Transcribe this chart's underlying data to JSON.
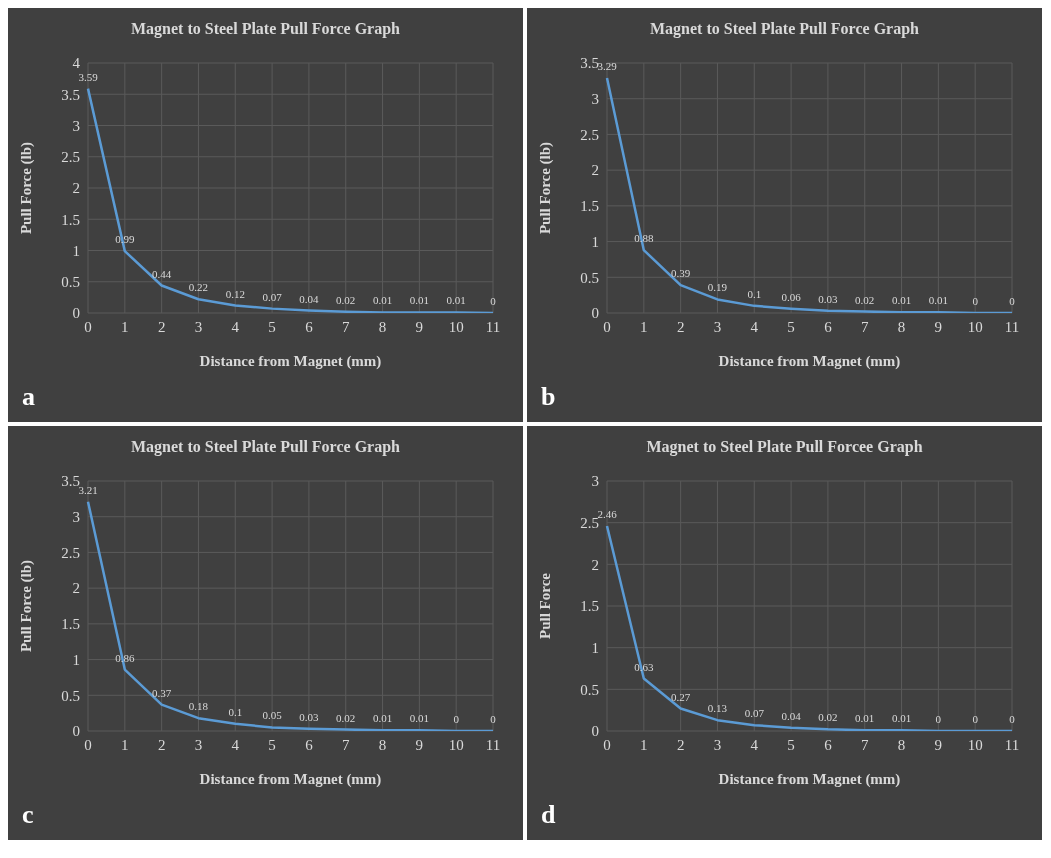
{
  "chart_data": [
    {
      "type": "line",
      "title": "Magnet to Steel Plate Pull Force Graph",
      "xlabel": "Distance from Magnet (mm)",
      "ylabel": "Pull Force (lb)",
      "categories": [
        "0",
        "1",
        "2",
        "3",
        "4",
        "5",
        "6",
        "7",
        "8",
        "9",
        "10",
        "11"
      ],
      "values": [
        3.59,
        0.99,
        0.44,
        0.22,
        0.12,
        0.07,
        0.04,
        0.02,
        0.01,
        0.01,
        0.01,
        0
      ],
      "color": "#5b9bd5",
      "ylim": [
        0,
        4
      ],
      "yticks": [
        0,
        0.5,
        1,
        1.5,
        2,
        2.5,
        3,
        3.5,
        4
      ],
      "grid": true,
      "data_labels": true,
      "annotations": [
        "a"
      ]
    },
    {
      "type": "line",
      "title": "Magnet to Steel Plate Pull Force Graph",
      "xlabel": "Distance from Magnet (mm)",
      "ylabel": "Pull Force (lb)",
      "categories": [
        "0",
        "1",
        "2",
        "3",
        "4",
        "5",
        "6",
        "7",
        "8",
        "9",
        "10",
        "11"
      ],
      "values": [
        3.29,
        0.88,
        0.39,
        0.19,
        0.1,
        0.06,
        0.03,
        0.02,
        0.01,
        0.01,
        0,
        0
      ],
      "color": "#5b9bd5",
      "ylim": [
        0,
        3.5
      ],
      "yticks": [
        0,
        0.5,
        1,
        1.5,
        2,
        2.5,
        3,
        3.5
      ],
      "grid": true,
      "data_labels": true,
      "annotations": [
        "b"
      ]
    },
    {
      "type": "line",
      "title": "Magnet to Steel Plate Pull Force Graph",
      "xlabel": "Distance from Magnet (mm)",
      "ylabel": "Pull Force (lb)",
      "categories": [
        "0",
        "1",
        "2",
        "3",
        "4",
        "5",
        "6",
        "7",
        "8",
        "9",
        "10",
        "11"
      ],
      "values": [
        3.21,
        0.86,
        0.37,
        0.18,
        0.1,
        0.05,
        0.03,
        0.02,
        0.01,
        0.01,
        0,
        0
      ],
      "color": "#5b9bd5",
      "ylim": [
        0,
        3.5
      ],
      "yticks": [
        0,
        0.5,
        1,
        1.5,
        2,
        2.5,
        3,
        3.5
      ],
      "grid": true,
      "data_labels": true,
      "annotations": [
        "c"
      ]
    },
    {
      "type": "line",
      "title": "Magnet to Steel Plate Pull Forcee Graph",
      "xlabel": "Distance from Magnet (mm)",
      "ylabel": "Pull Force",
      "categories": [
        "0",
        "1",
        "2",
        "3",
        "4",
        "5",
        "6",
        "7",
        "8",
        "9",
        "10",
        "11"
      ],
      "values": [
        2.46,
        0.63,
        0.27,
        0.13,
        0.07,
        0.04,
        0.02,
        0.01,
        0.01,
        0,
        0,
        0
      ],
      "color": "#5b9bd5",
      "ylim": [
        0,
        3
      ],
      "yticks": [
        0,
        0.5,
        1,
        1.5,
        2,
        2.5,
        3
      ],
      "grid": true,
      "data_labels": true,
      "annotations": [
        "d"
      ]
    }
  ]
}
